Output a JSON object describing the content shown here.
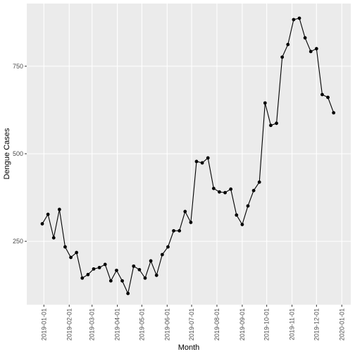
{
  "chart_data": {
    "type": "line",
    "x_label": "Month",
    "y_label": "Dengue Cases",
    "x": [
      "2018-12-30",
      "2019-01-06",
      "2019-01-13",
      "2019-01-20",
      "2019-01-27",
      "2019-02-03",
      "2019-02-10",
      "2019-02-17",
      "2019-02-24",
      "2019-03-03",
      "2019-03-10",
      "2019-03-17",
      "2019-03-24",
      "2019-03-31",
      "2019-04-07",
      "2019-04-14",
      "2019-04-21",
      "2019-04-28",
      "2019-05-05",
      "2019-05-12",
      "2019-05-19",
      "2019-05-26",
      "2019-06-02",
      "2019-06-09",
      "2019-06-16",
      "2019-06-23",
      "2019-06-30",
      "2019-07-07",
      "2019-07-14",
      "2019-07-21",
      "2019-07-28",
      "2019-08-04",
      "2019-08-11",
      "2019-08-18",
      "2019-08-25",
      "2019-09-01",
      "2019-09-08",
      "2019-09-15",
      "2019-09-22",
      "2019-09-29",
      "2019-10-06",
      "2019-10-13",
      "2019-10-20",
      "2019-10-27",
      "2019-11-03",
      "2019-11-10",
      "2019-11-17",
      "2019-11-24",
      "2019-12-01",
      "2019-12-08",
      "2019-12-15",
      "2019-12-22"
    ],
    "series": [
      {
        "name": "Dengue Cases",
        "color": "#000000",
        "values": [
          300,
          327,
          260,
          341,
          234,
          204,
          218,
          145,
          155,
          171,
          175,
          184,
          137,
          167,
          137,
          101,
          179,
          169,
          145,
          194,
          153,
          212,
          234,
          280,
          280,
          335,
          304,
          478,
          474,
          488,
          401,
          391,
          389,
          399,
          325,
          298,
          351,
          395,
          419,
          645,
          581,
          587,
          776,
          812,
          883,
          887,
          831,
          792,
          800,
          669,
          661,
          617
        ]
      }
    ],
    "xlim": [
      "2018-12-11",
      "2020-01-12"
    ],
    "xticks": [
      "2019-01-01",
      "2019-02-01",
      "2019-03-01",
      "2019-04-01",
      "2019-05-01",
      "2019-06-01",
      "2019-07-01",
      "2019-08-01",
      "2019-09-01",
      "2019-10-01",
      "2019-11-01",
      "2019-12-01",
      "2020-01-01"
    ],
    "ylim": [
      69,
      929
    ],
    "yticks": [
      250,
      500,
      750
    ],
    "grid": true
  }
}
